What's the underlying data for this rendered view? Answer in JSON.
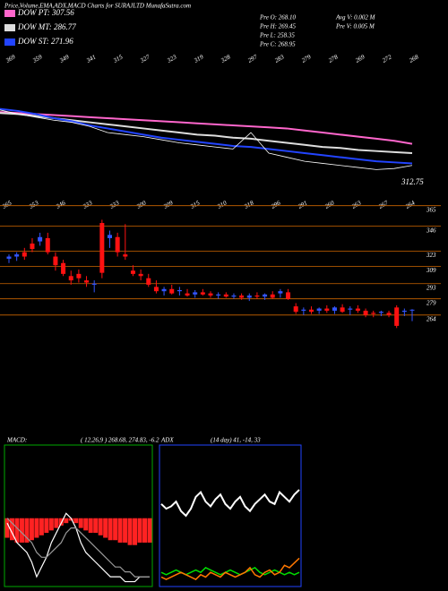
{
  "header": {
    "title": "Price,Volume,EMA,ADX,MACD Charts for SURAJLTD MunafaSutra.com",
    "stats": [
      [
        "Pre  O: 268.10",
        "Avg V: 0.002  M"
      ],
      [
        "Pre  H: 269.45",
        "Pre  V: 0.005 M"
      ],
      [
        "Pre  L: 258.35"
      ],
      [
        "Pre  C: 268.95"
      ]
    ]
  },
  "chart_data": [
    {
      "type": "line",
      "tops": [
        "369",
        "359",
        "349",
        "341",
        "315",
        "327",
        "323",
        "319",
        "328",
        "297",
        "283",
        "279",
        "278",
        "269",
        "272",
        "268"
      ],
      "lows": [
        "365",
        "353",
        "346",
        "333",
        "333",
        "300",
        "309",
        "315",
        "310",
        "318",
        "296",
        "291",
        "260",
        "263",
        "267",
        "264"
      ],
      "annotations": [
        "312.75"
      ],
      "ylim": [
        246,
        368
      ],
      "series": [
        {
          "name": "DOW PT: 307.56",
          "color": "#ff66cc",
          "values": [
            320,
            319,
            318,
            317,
            316,
            315,
            314,
            313,
            312,
            311,
            310,
            309,
            308,
            307,
            306,
            305,
            304,
            302,
            300,
            298,
            296,
            294,
            292,
            289
          ]
        },
        {
          "name": "DOW MT: 286.77",
          "color": "#dddddd",
          "values": [
            319,
            318,
            316,
            314,
            312,
            310,
            308,
            306,
            304,
            302,
            300,
            298,
            297,
            295,
            294,
            292,
            290,
            288,
            286,
            285,
            283,
            282,
            281,
            280
          ]
        },
        {
          "name": "DOW ST: 271.96",
          "color": "#2244ff",
          "values": [
            323,
            321,
            318,
            314,
            311,
            307,
            304,
            301,
            298,
            295,
            293,
            291,
            289,
            287,
            286,
            284,
            282,
            280,
            278,
            276,
            274,
            272,
            271,
            270
          ]
        },
        {
          "color": "#ffffff",
          "values": [
            322,
            318,
            315,
            312,
            310,
            306,
            300,
            298,
            296,
            293,
            290,
            288,
            286,
            284,
            300,
            280,
            276,
            272,
            270,
            268,
            266,
            264,
            265,
            268
          ]
        }
      ]
    },
    {
      "type": "candlestick",
      "up_color": "#3355ff",
      "down_color": "#ff1111",
      "grid_color": "#cc6600",
      "ylim": [
        158,
        373
      ],
      "yticks": [
        365,
        346,
        323,
        309,
        293,
        279,
        264
      ],
      "open": [
        316,
        318,
        322,
        330,
        332,
        335,
        318,
        312,
        300,
        302,
        296,
        292,
        349,
        335,
        336,
        320,
        305,
        302,
        298,
        290,
        286,
        288,
        286,
        284,
        283,
        285,
        284,
        282,
        283,
        281,
        282,
        280,
        282,
        281,
        283,
        284,
        285,
        272,
        268,
        269,
        268,
        270,
        268,
        271,
        269,
        270,
        268,
        266,
        266,
        266,
        271,
        267,
        268.1
      ],
      "high": [
        320,
        322,
        326,
        335,
        340,
        340,
        322,
        315,
        305,
        306,
        300,
        296,
        352,
        342,
        340,
        348,
        310,
        306,
        302,
        296,
        290,
        292,
        290,
        288,
        287,
        288,
        286,
        285,
        285,
        284,
        284,
        284,
        285,
        284,
        286,
        288,
        288,
        275,
        271,
        272,
        271,
        273,
        272,
        274,
        272,
        273,
        270,
        268,
        268,
        268,
        273,
        270,
        269.45
      ],
      "low": [
        312,
        314,
        315,
        322,
        328,
        320,
        305,
        300,
        292,
        294,
        290,
        285,
        298,
        326,
        318,
        315,
        300,
        296,
        290,
        284,
        282,
        283,
        282,
        281,
        280,
        282,
        280,
        279,
        280,
        279,
        278,
        277,
        279,
        278,
        279,
        280,
        278,
        265,
        264,
        265,
        265,
        266,
        265,
        266,
        264,
        266,
        262,
        262,
        263,
        262,
        252,
        263,
        258.35
      ],
      "close": [
        318,
        320,
        318,
        325,
        336,
        322,
        310,
        302,
        296,
        298,
        294,
        293,
        303,
        338,
        322,
        318,
        302,
        300,
        292,
        286,
        288,
        284,
        287,
        282,
        285,
        283,
        282,
        283,
        281,
        282,
        280,
        282,
        281,
        283,
        280,
        286,
        279,
        267,
        269,
        267,
        270,
        268,
        271,
        267,
        270,
        268,
        264,
        265,
        267,
        264,
        254,
        268,
        268.95
      ]
    },
    {
      "type": "macd",
      "title": "MACD:",
      "subtitle": "( 12,26,9 ) 268.68,  274.83,  -6.2",
      "ylim": [
        -14,
        15
      ],
      "border": "#00aa00",
      "series": [
        {
          "color": "#ff2222",
          "values": [
            -4,
            -4.5,
            -5,
            -5,
            -5,
            -4.5,
            -4,
            -3.5,
            -3,
            -2.5,
            -2,
            -1.5,
            -1,
            -0.5,
            -1,
            -2,
            -2.5,
            -3,
            -3,
            -3.5,
            -4,
            -4.5,
            -4.5,
            -5,
            -5,
            -5.5,
            -5.5,
            -5,
            -5,
            -5
          ]
        },
        {
          "color": "#ffffff",
          "values": [
            -1,
            -3,
            -5,
            -6,
            -7,
            -9,
            -12,
            -10,
            -8,
            -5,
            -3,
            -1,
            1,
            0,
            -2,
            -5,
            -7,
            -8,
            -9,
            -10,
            -11,
            -12,
            -12,
            -12,
            -13,
            -13,
            -13,
            -12,
            -12,
            -12
          ]
        },
        {
          "color": "#999999",
          "values": [
            0,
            -1,
            -2,
            -3,
            -4,
            -5,
            -7,
            -8,
            -8,
            -7,
            -6,
            -5,
            -3,
            -2,
            -2,
            -3,
            -4,
            -5,
            -6,
            -7,
            -8,
            -9,
            -10,
            -10,
            -11,
            -11,
            -12,
            -12,
            -12,
            -12
          ]
        }
      ]
    },
    {
      "type": "line",
      "title": "ADX",
      "subtitle": "(14  day) 41,  -14,  33",
      "ylim": [
        0,
        60
      ],
      "border": "#2244ff",
      "series": [
        {
          "color": "#ffffff",
          "values": [
            35,
            33,
            34,
            36,
            32,
            30,
            33,
            38,
            40,
            36,
            34,
            37,
            39,
            35,
            33,
            36,
            38,
            34,
            32,
            35,
            37,
            39,
            36,
            35,
            40,
            38,
            36,
            39,
            41
          ]
        },
        {
          "color": "#00dd00",
          "values": [
            6,
            5,
            6,
            7,
            6,
            5,
            6,
            7,
            6,
            8,
            7,
            6,
            5,
            6,
            7,
            6,
            5,
            6,
            7,
            8,
            6,
            5,
            6,
            7,
            6,
            5,
            6,
            5,
            6
          ]
        },
        {
          "color": "#ff7700",
          "values": [
            4,
            3,
            4,
            5,
            6,
            5,
            4,
            3,
            5,
            4,
            6,
            5,
            4,
            6,
            5,
            4,
            5,
            6,
            8,
            5,
            4,
            6,
            7,
            5,
            6,
            9,
            8,
            10,
            12
          ]
        }
      ]
    }
  ]
}
